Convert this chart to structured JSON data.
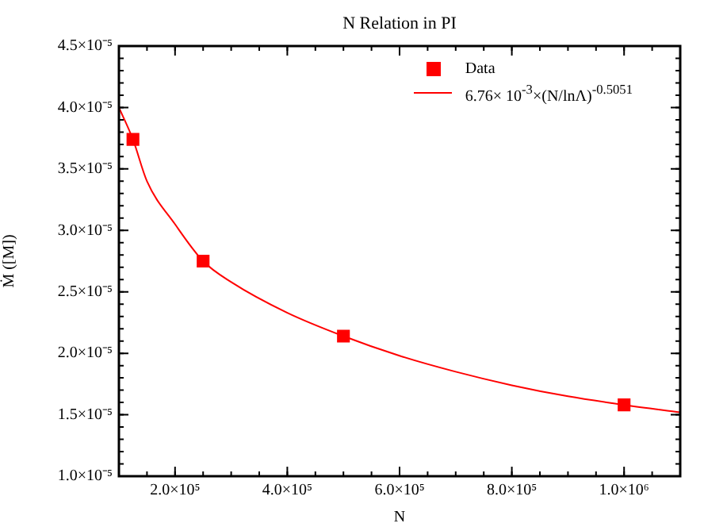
{
  "chart_data": {
    "type": "scatter",
    "title": "N Relation in PI",
    "xlabel": "N",
    "ylabel": "Ṁ ([M])",
    "xlim": [
      100000,
      1100000
    ],
    "xticks": [
      {
        "value": 200000,
        "label": "2.0×10⁵"
      },
      {
        "value": 400000,
        "label": "4.0×10⁵"
      },
      {
        "value": 600000,
        "label": "6.0×10⁵"
      },
      {
        "value": 800000,
        "label": "8.0×10⁵"
      },
      {
        "value": 1000000,
        "label": "1.0×10⁶"
      }
    ],
    "ylim": [
      1e-05,
      4.5e-05
    ],
    "yticks": [
      {
        "value": 1e-05,
        "label": "1.0×10⁻⁵"
      },
      {
        "value": 1.5e-05,
        "label": "1.5×10⁻⁵"
      },
      {
        "value": 2e-05,
        "label": "2.0×10⁻⁵"
      },
      {
        "value": 2.5e-05,
        "label": "2.5×10⁻⁵"
      },
      {
        "value": 3e-05,
        "label": "3.0×10⁻⁵"
      },
      {
        "value": 3.5e-05,
        "label": "3.5×10⁻⁵"
      },
      {
        "value": 4e-05,
        "label": "4.0×10⁻⁵"
      },
      {
        "value": 4.5e-05,
        "label": "4.5×10⁻⁵"
      }
    ],
    "grid": false,
    "legend": "top right",
    "series": [
      {
        "name": "Data",
        "marker": "square",
        "color": "#ff0000",
        "x": [
          125000,
          250000,
          500000,
          1000000
        ],
        "values": [
          3.74e-05,
          2.75e-05,
          2.14e-05,
          1.58e-05
        ]
      },
      {
        "name": "6.76× 10$^{-3}$×(N/lnΛ)$^{-0.5051}$",
        "type": "line",
        "marker": "none",
        "line_style": "solid",
        "color": "#ff0000",
        "x": [
          100000,
          125000,
          150000,
          200000,
          250000,
          300000,
          400000,
          500000,
          600000,
          700000,
          800000,
          900000,
          1000000,
          1100000
        ],
        "values": [
          4e-05,
          3.74e-05,
          3.4e-05,
          3.05e-05,
          2.75e-05,
          2.58e-05,
          2.33e-05,
          2.14e-05,
          1.98e-05,
          1.85e-05,
          1.74e-05,
          1.65e-05,
          1.58e-05,
          1.52e-05
        ]
      }
    ]
  }
}
